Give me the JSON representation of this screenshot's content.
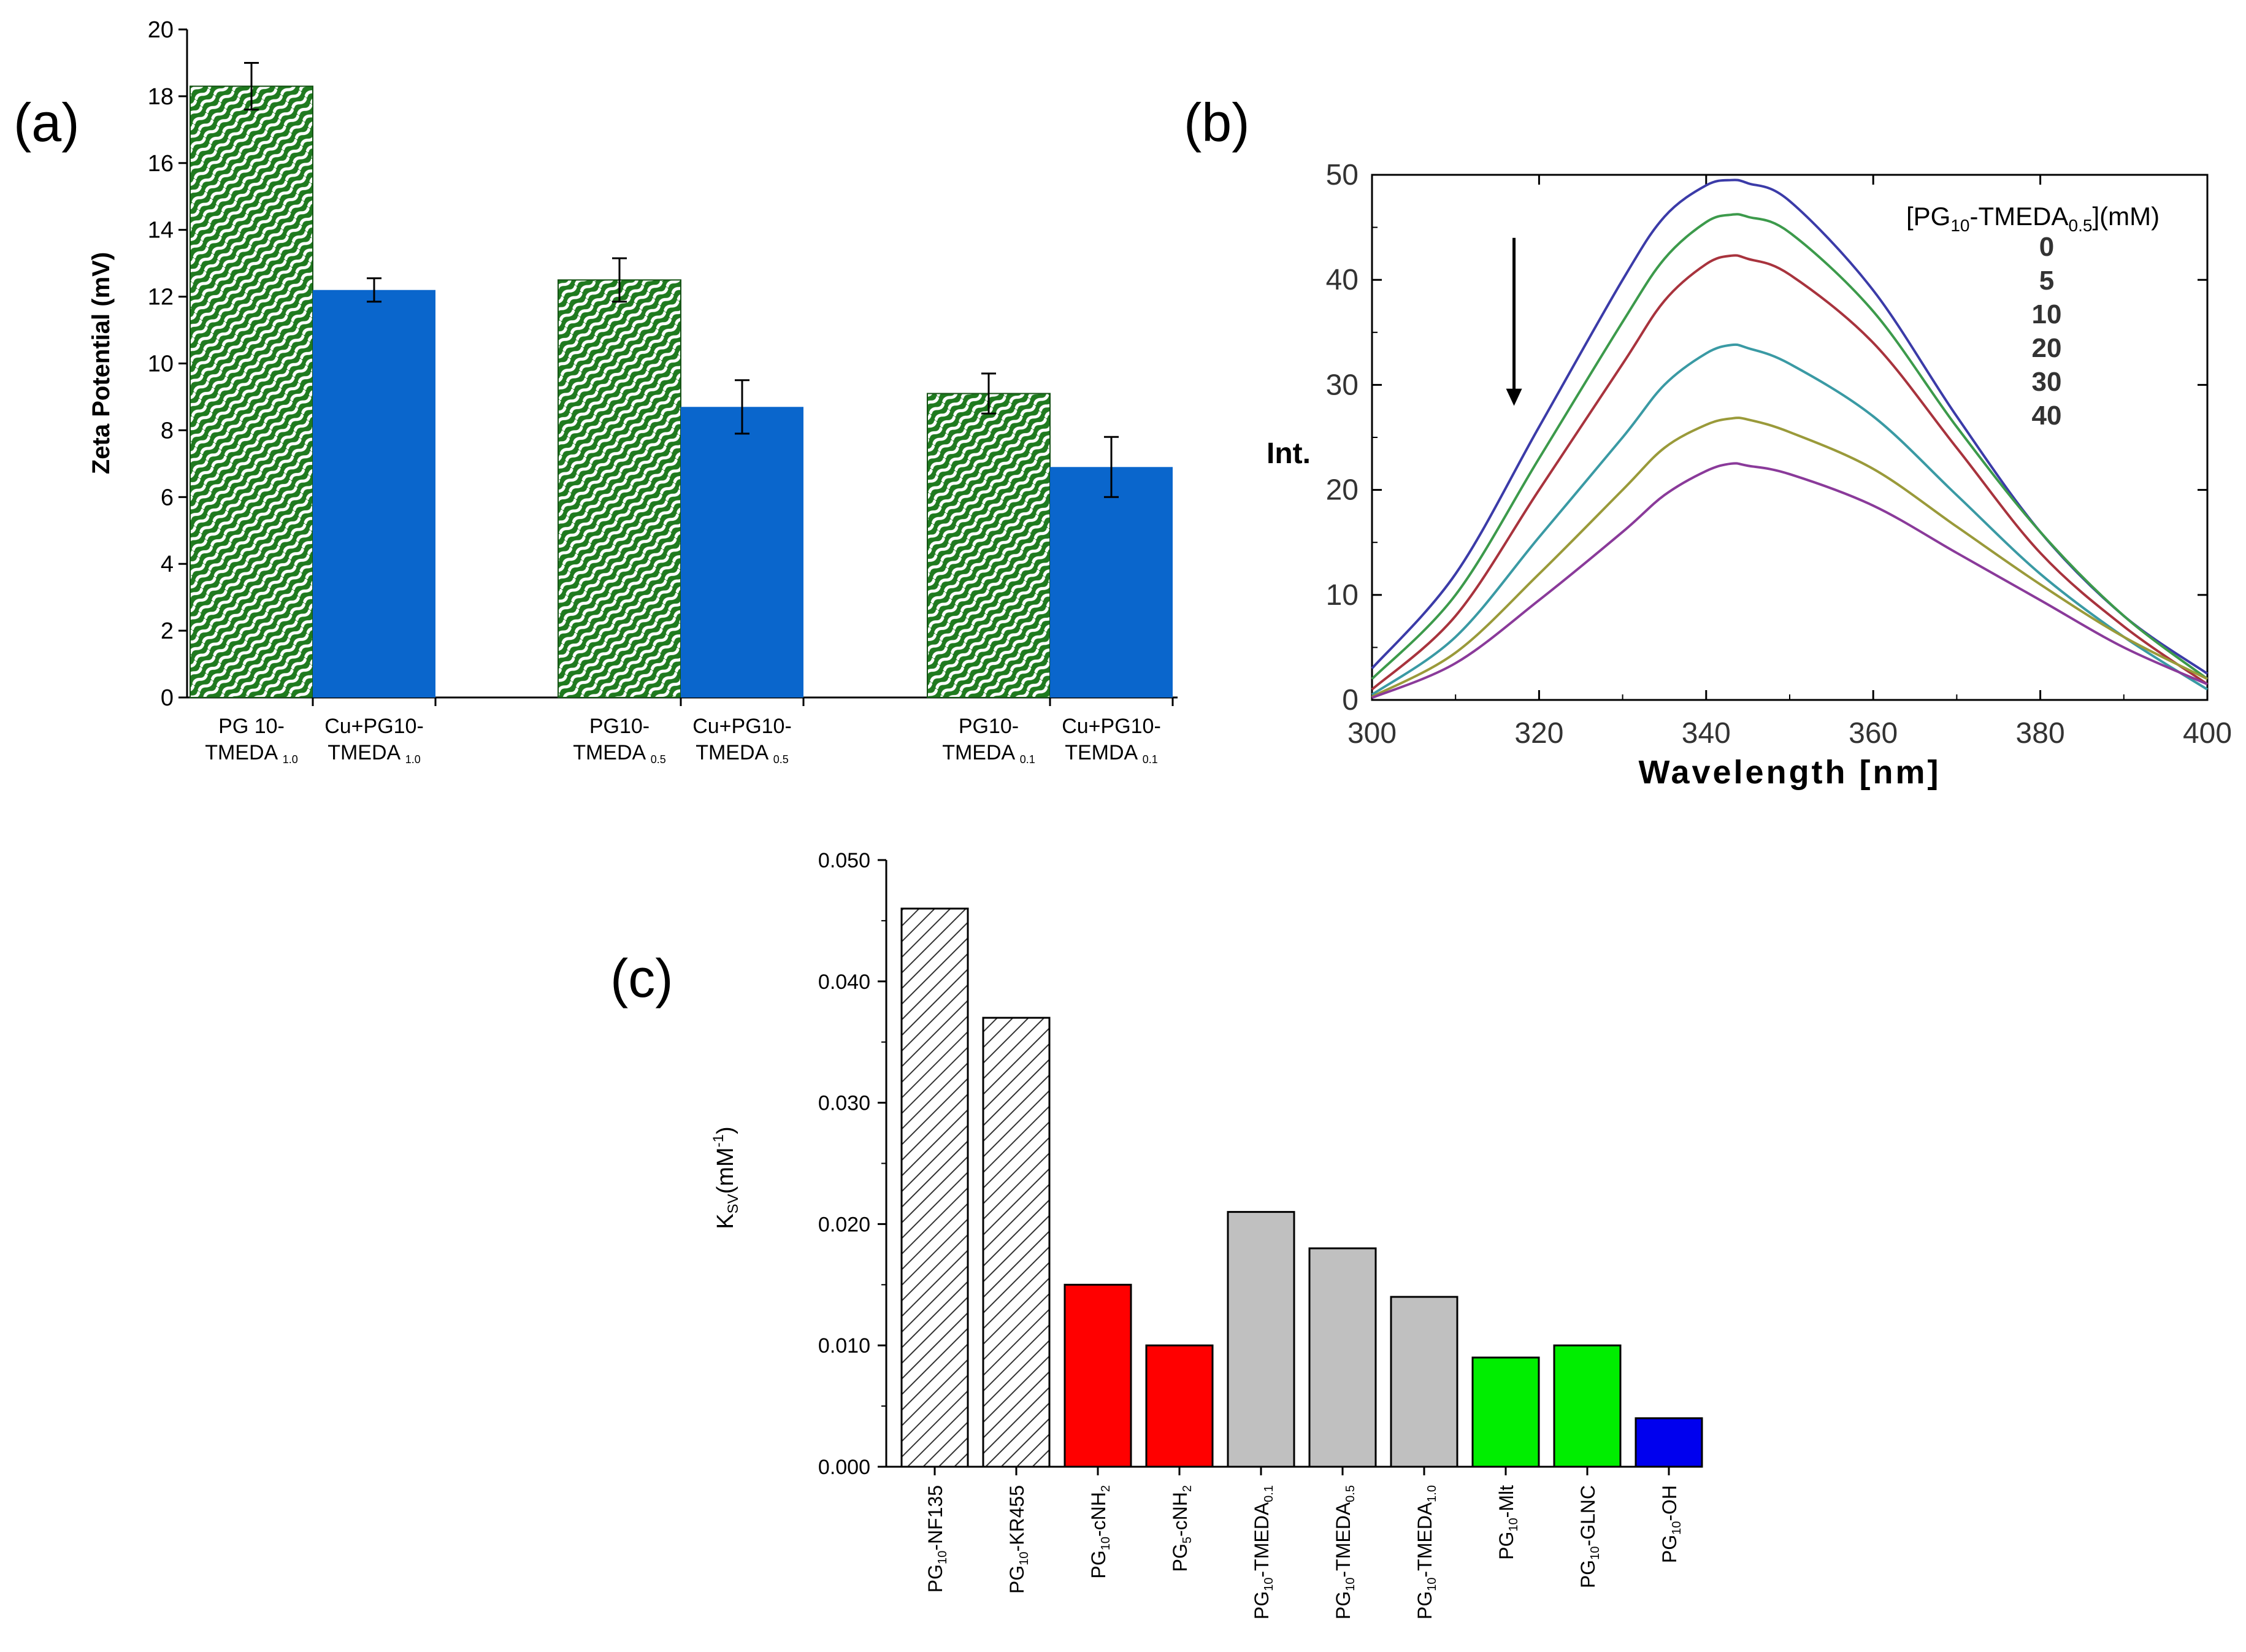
{
  "panels": {
    "a": "(a)",
    "b": "(b)",
    "c": "(c)"
  },
  "chart_data": [
    {
      "id": "a",
      "type": "bar",
      "ylabel": "Zeta Potential (mV)",
      "ylim": [
        0,
        20
      ],
      "yticks": [
        0,
        2,
        4,
        6,
        8,
        10,
        12,
        14,
        16,
        18,
        20
      ],
      "error_bars": true,
      "series_colors": {
        "pg": "#1f7a1f",
        "cu": "#0a66cc"
      },
      "bars": [
        {
          "group": 0,
          "kind": "pg",
          "value": 18.3,
          "err": 0.7,
          "label_main": "PG 10-",
          "label_line2": "TMEDA",
          "label_sub": "1.0"
        },
        {
          "group": 0,
          "kind": "cu",
          "value": 12.2,
          "err": 0.35,
          "label_main": "Cu+PG10-",
          "label_line2": "TMEDA",
          "label_sub": "1.0"
        },
        {
          "group": 1,
          "kind": "pg",
          "value": 12.5,
          "err": 0.65,
          "label_main": "PG10-",
          "label_line2": "TMEDA",
          "label_sub": "0.5"
        },
        {
          "group": 1,
          "kind": "cu",
          "value": 8.7,
          "err": 0.8,
          "label_main": "Cu+PG10-",
          "label_line2": "TMEDA",
          "label_sub": "0.5"
        },
        {
          "group": 2,
          "kind": "pg",
          "value": 9.1,
          "err": 0.6,
          "label_main": "PG10-",
          "label_line2": "TMEDA",
          "label_sub": "0.1"
        },
        {
          "group": 2,
          "kind": "cu",
          "value": 6.9,
          "err": 0.9,
          "label_main": "Cu+PG10-",
          "label_line2": "TEMDA",
          "label_sub": "0.1"
        }
      ]
    },
    {
      "id": "b",
      "type": "line",
      "xlabel": "Wavelength [nm]",
      "ylabel": "Int.",
      "xlim": [
        300,
        400
      ],
      "ylim": [
        0,
        50
      ],
      "xticks": [
        300,
        320,
        340,
        360,
        380,
        400
      ],
      "yticks": [
        0,
        10,
        20,
        30,
        40,
        50
      ],
      "legend_title": {
        "pre": "[PG",
        "sub1": "10",
        "mid": "-TMEDA",
        "sub2": "0.5",
        "post": "](mM)"
      },
      "arrow": {
        "x": 317,
        "y_from": 44,
        "y_to": 28
      },
      "x": [
        300,
        310,
        320,
        330,
        335,
        340,
        343,
        345,
        350,
        360,
        370,
        380,
        390,
        400
      ],
      "series": [
        {
          "name": "0",
          "color": "#3b3ba8",
          "values": [
            3,
            12,
            26,
            40,
            46,
            49,
            49.5,
            49.2,
            47.5,
            39,
            27,
            16,
            8,
            2.5
          ]
        },
        {
          "name": "5",
          "color": "#3c9a4b",
          "values": [
            2,
            10,
            23,
            36,
            42,
            45.5,
            46.2,
            46,
            44.5,
            37,
            26,
            16,
            8,
            2
          ]
        },
        {
          "name": "10",
          "color": "#a8333d",
          "values": [
            1,
            8,
            20,
            32,
            38,
            41.5,
            42.3,
            42,
            40.5,
            34,
            24,
            14,
            7,
            1.5
          ]
        },
        {
          "name": "20",
          "color": "#3a9aa4",
          "values": [
            0.5,
            6,
            15.5,
            25,
            30,
            33,
            33.8,
            33.5,
            32,
            27,
            19.5,
            12,
            6,
            1
          ]
        },
        {
          "name": "30",
          "color": "#9a9a3a",
          "values": [
            0.3,
            4.5,
            12,
            20,
            24,
            26.2,
            26.8,
            26.7,
            25.5,
            22,
            16.5,
            11,
            6,
            2
          ]
        },
        {
          "name": "40",
          "color": "#8a3a9a",
          "values": [
            0.2,
            3.5,
            9.5,
            16,
            19.5,
            21.8,
            22.5,
            22.3,
            21.5,
            18.5,
            14,
            9.5,
            5,
            1.5
          ]
        }
      ]
    },
    {
      "id": "c",
      "type": "bar",
      "ylabel_main": "K",
      "ylabel_sub": "SV",
      "ylabel_post": "(mM",
      "ylabel_sup": "-1",
      "ylabel_end": ")",
      "ylim": [
        0,
        0.05
      ],
      "yticks": [
        "0.000",
        "0.010",
        "0.020",
        "0.030",
        "0.040",
        "0.050"
      ],
      "bars": [
        {
          "value": 0.046,
          "fill": "hatch",
          "label_pre": "PG",
          "label_sub": "10",
          "label_post": "-NF135"
        },
        {
          "value": 0.037,
          "fill": "hatch",
          "label_pre": "PG",
          "label_sub": "10",
          "label_post": "-KR455"
        },
        {
          "value": 0.015,
          "fill": "#ff0000",
          "label_pre": "PG",
          "label_sub": "10",
          "label_post": "-cNH",
          "label_sub2": "2"
        },
        {
          "value": 0.01,
          "fill": "#ff0000",
          "label_pre": "PG",
          "label_sub": "5",
          "label_post": "-cNH",
          "label_sub2": "2"
        },
        {
          "value": 0.021,
          "fill": "#c0c0c0",
          "label_pre": "PG",
          "label_sub": "10",
          "label_post": "-TMEDA",
          "label_sub2": "0.1"
        },
        {
          "value": 0.018,
          "fill": "#c0c0c0",
          "label_pre": "PG",
          "label_sub": "10",
          "label_post": "-TMEDA",
          "label_sub2": "0.5"
        },
        {
          "value": 0.014,
          "fill": "#c0c0c0",
          "label_pre": "PG",
          "label_sub": "10",
          "label_post": "-TMEDA",
          "label_sub2": "1.0"
        },
        {
          "value": 0.009,
          "fill": "#00ee00",
          "label_pre": "PG",
          "label_sub": "10",
          "label_post": "-Mlt"
        },
        {
          "value": 0.01,
          "fill": "#00ee00",
          "label_pre": "PG",
          "label_sub": "10",
          "label_post": "-GLNC"
        },
        {
          "value": 0.004,
          "fill": "#0000ee",
          "label_pre": "PG",
          "label_sub": "10",
          "label_post": "-OH"
        }
      ]
    }
  ]
}
